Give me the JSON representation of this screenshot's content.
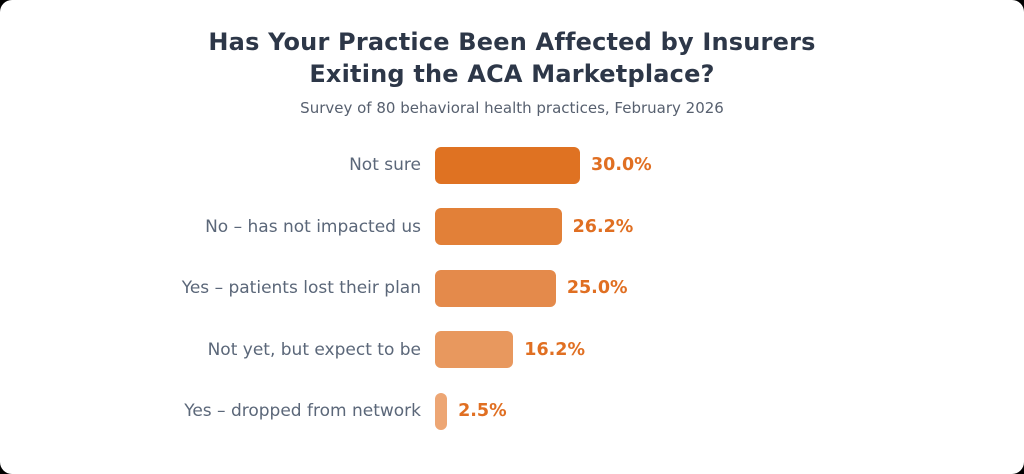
{
  "page": {
    "background_color": "#000000",
    "card_background_color": "#ffffff"
  },
  "colors": {
    "title_color": "#2d3748",
    "subtitle_color": "#57606f",
    "category_label_color": "#5b6779",
    "value_label_color": "#e06f22"
  },
  "chart_data": {
    "type": "bar",
    "orientation": "horizontal",
    "title": "Has Your Practice Been Affected by Insurers Exiting the ACA Marketplace?",
    "title_lines": [
      "Has Your Practice Been Affected by Insurers",
      "Exiting the ACA Marketplace?"
    ],
    "subtitle": "Survey of 80 behavioral health practices, February 2026",
    "categories": [
      "Not sure",
      "No – has not impacted us",
      "Yes – patients lost their plan",
      "Not yet, but expect to be",
      "Yes – dropped from network"
    ],
    "values": [
      30.0,
      26.2,
      25.0,
      16.2,
      2.5
    ],
    "value_labels": [
      "30.0%",
      "26.2%",
      "25.0%",
      "16.2%",
      "2.5%"
    ],
    "bar_colors": [
      "#df7222",
      "#e28038",
      "#e48a4b",
      "#e8985e",
      "#eda674"
    ],
    "axis_max": 30,
    "pixels_per_unit": 4.8333,
    "grid": false,
    "legend": "none"
  }
}
